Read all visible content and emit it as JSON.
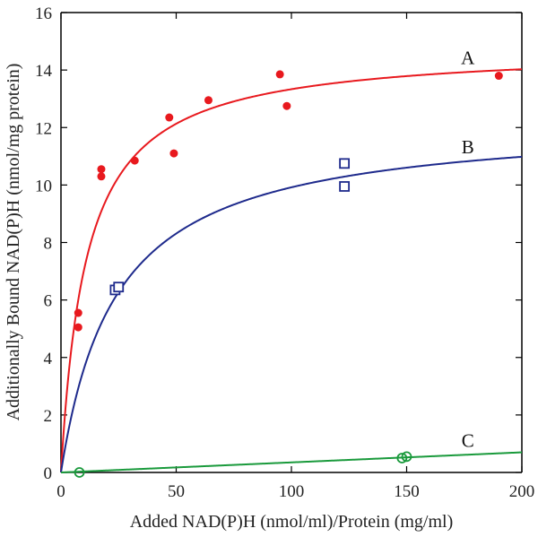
{
  "chart_data": {
    "type": "scatter",
    "title": "",
    "xlabel": "Added NAD(P)H (nmol/ml)/Protein (mg/ml)",
    "ylabel": "Additionally Bound NAD(P)H (nmol/mg protein)",
    "xlim": [
      0,
      200
    ],
    "ylim": [
      0,
      16
    ],
    "xticks": [
      0,
      50,
      100,
      150,
      200
    ],
    "yticks": [
      0,
      2,
      4,
      6,
      8,
      10,
      12,
      14,
      16
    ],
    "grid": false,
    "series": [
      {
        "name": "A",
        "color": "#e8191e",
        "marker": "filled-circle",
        "points": [
          [
            7.5,
            5.55
          ],
          [
            7.5,
            5.05
          ],
          [
            17.5,
            10.55
          ],
          [
            17.5,
            10.3
          ],
          [
            32,
            10.85
          ],
          [
            47,
            12.35
          ],
          [
            49,
            11.1
          ],
          [
            64,
            12.95
          ],
          [
            95,
            13.85
          ],
          [
            98,
            12.75
          ],
          [
            190,
            13.8
          ]
        ],
        "fit": {
          "model": "saturation",
          "bmax": 14.8,
          "kd": 11
        }
      },
      {
        "name": "B",
        "color": "#1e2a8c",
        "marker": "open-square",
        "points": [
          [
            23.5,
            6.35
          ],
          [
            25,
            6.45
          ],
          [
            123,
            10.75
          ],
          [
            123,
            9.95
          ]
        ],
        "fit": {
          "model": "saturation",
          "bmax": 12.3,
          "kd": 24
        }
      },
      {
        "name": "C",
        "color": "#1a9a3c",
        "marker": "open-circle",
        "points": [
          [
            8,
            0.0
          ],
          [
            148,
            0.5
          ],
          [
            150,
            0.55
          ]
        ],
        "fit": {
          "model": "linear",
          "slope": 0.0035,
          "intercept": 0
        }
      }
    ]
  }
}
